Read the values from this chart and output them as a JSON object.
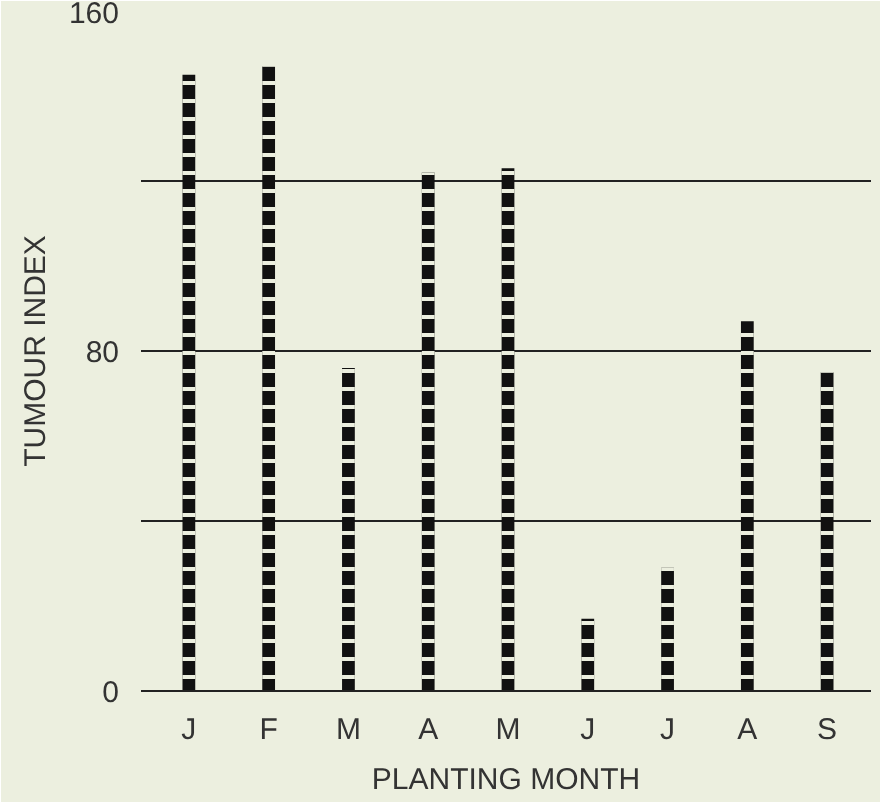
{
  "chart_data": {
    "type": "bar",
    "xlabel": "PLANTING MONTH",
    "ylabel": "TUMOUR INDEX",
    "categories": [
      "J",
      "F",
      "M",
      "A",
      "M",
      "J",
      "J",
      "A",
      "S"
    ],
    "values": [
      145,
      147,
      76,
      122,
      123,
      17,
      29,
      87,
      75
    ],
    "color": "#111111",
    "ylim": [
      0,
      160
    ],
    "yticks": [
      0,
      {
        "value": 40,
        "label": null
      },
      80,
      {
        "value": 120,
        "label": null
      },
      160
    ],
    "grid": "y"
  }
}
